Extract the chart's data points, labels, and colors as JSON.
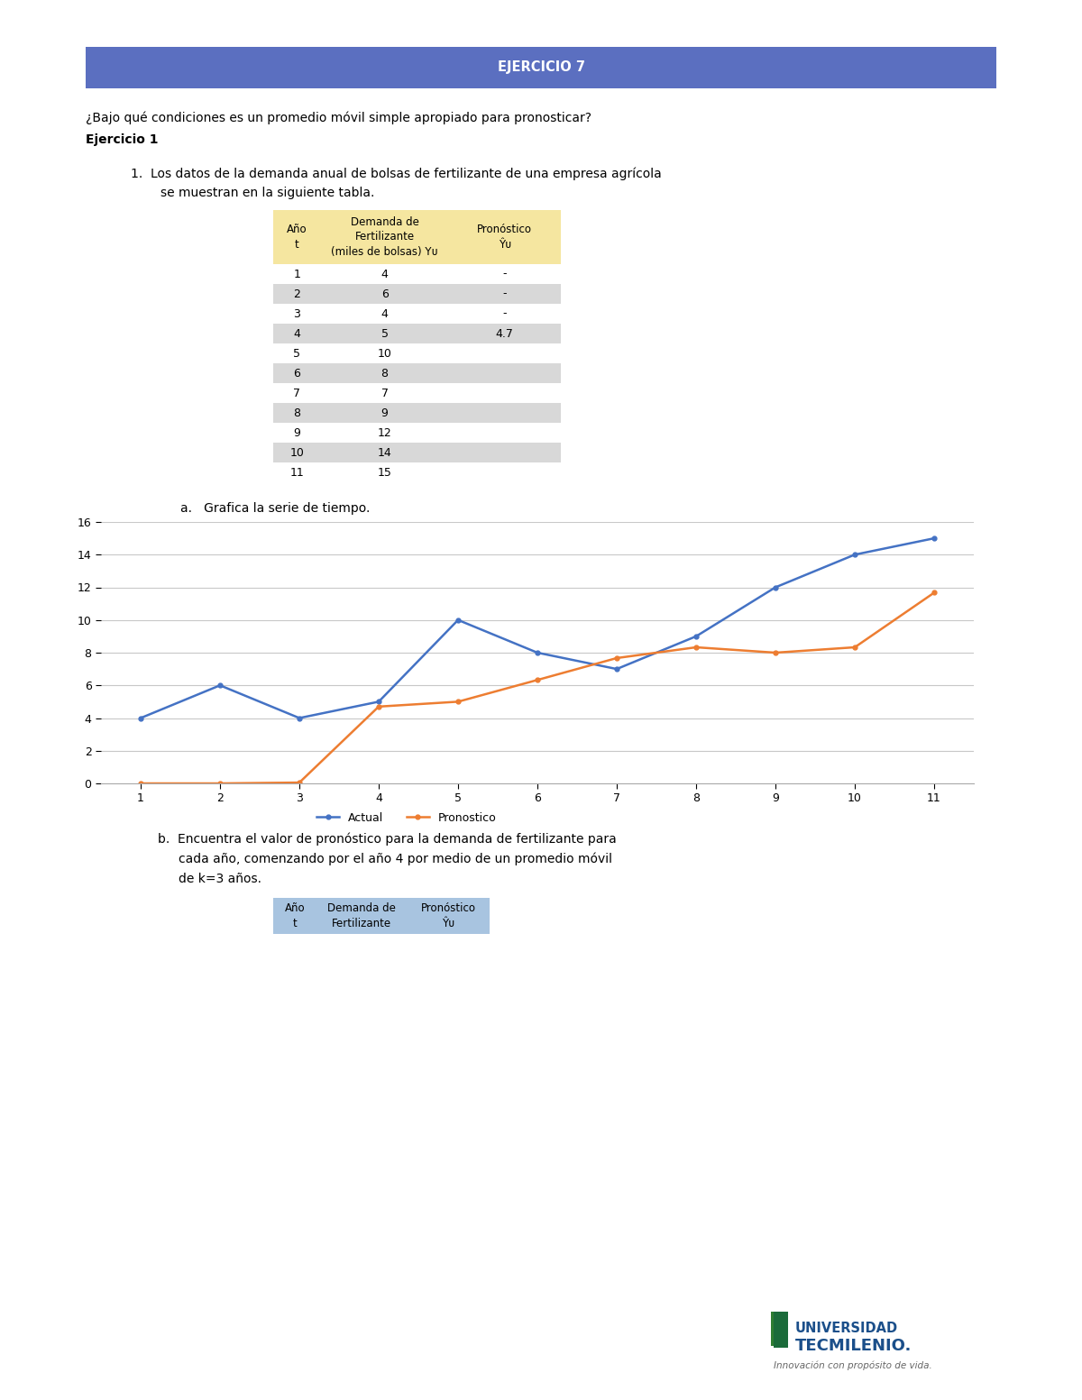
{
  "title": "EJERCICIO 7",
  "title_bg": "#5B6FC0",
  "title_color": "#FFFFFF",
  "question": "¿Bajo qué condiciones es un promedio móvil simple apropiado para pronosticar?",
  "subtitle": "Ejercicio 1",
  "table1_header_bg": "#F5E6A0",
  "table1_data": [
    [
      "1",
      "4",
      "-"
    ],
    [
      "2",
      "6",
      "-"
    ],
    [
      "3",
      "4",
      "-"
    ],
    [
      "4",
      "5",
      "4.7"
    ],
    [
      "5",
      "10",
      ""
    ],
    [
      "6",
      "8",
      ""
    ],
    [
      "7",
      "7",
      ""
    ],
    [
      "8",
      "9",
      ""
    ],
    [
      "9",
      "12",
      ""
    ],
    [
      "10",
      "14",
      ""
    ],
    [
      "11",
      "15",
      ""
    ]
  ],
  "table1_alt_bg": "#D8D8D8",
  "table1_white_bg": "#FFFFFF",
  "actual_x": [
    1,
    2,
    3,
    4,
    5,
    6,
    7,
    8,
    9,
    10,
    11
  ],
  "actual_y": [
    4,
    6,
    4,
    5,
    10,
    8,
    7,
    9,
    12,
    14,
    15
  ],
  "forecast_x": [
    1,
    2,
    3,
    4,
    5,
    6,
    7,
    8,
    9,
    10,
    11
  ],
  "forecast_y": [
    0,
    0,
    0.05,
    4.7,
    5.0,
    6.33,
    7.67,
    8.33,
    8.0,
    8.33,
    11.67
  ],
  "actual_color": "#4472C4",
  "forecast_color": "#ED7D31",
  "chart_bg": "#FFFFFF",
  "grid_color": "#C8C8C8",
  "yticks": [
    0,
    2,
    4,
    6,
    8,
    10,
    12,
    14,
    16
  ],
  "xticks": [
    1,
    2,
    3,
    4,
    5,
    6,
    7,
    8,
    9,
    10,
    11
  ],
  "legend_actual": "Actual",
  "legend_forecast": "Pronostico",
  "table2_header_bg": "#A8C4E0",
  "logo_color": "#1B4F8A",
  "logo_sub_color": "#555555"
}
